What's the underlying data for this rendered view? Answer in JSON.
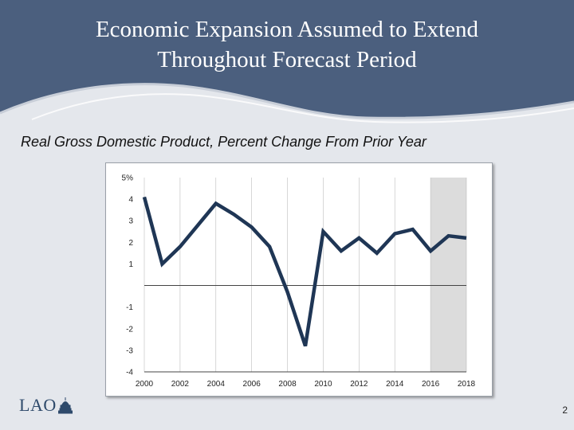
{
  "slide": {
    "title_line1": "Economic Expansion Assumed to Extend",
    "title_line2": "Throughout Forecast Period",
    "subtitle": "Real Gross Domestic Product, Percent Change From Prior Year",
    "page_number": "2",
    "logo_text": "LAO"
  },
  "colors": {
    "header": "#4b5f7e",
    "line": "#1f3655",
    "shade": "#dcdcdc"
  },
  "chart_data": {
    "type": "line",
    "title": "Real Gross Domestic Product, Percent Change From Prior Year",
    "xlabel": "",
    "ylabel": "",
    "x": [
      2000,
      2001,
      2002,
      2003,
      2004,
      2005,
      2006,
      2007,
      2008,
      2009,
      2010,
      2011,
      2012,
      2013,
      2014,
      2015,
      2016,
      2017,
      2018
    ],
    "values": [
      4.1,
      1.0,
      1.8,
      2.8,
      3.8,
      3.3,
      2.7,
      1.8,
      -0.3,
      -2.8,
      2.5,
      1.6,
      2.2,
      1.5,
      2.4,
      2.6,
      1.6,
      2.3,
      2.2
    ],
    "ylim": [
      -4,
      5
    ],
    "xlim": [
      2000,
      2018
    ],
    "y_ticks": [
      -4,
      -3,
      -2,
      -1,
      1,
      2,
      3,
      4,
      5
    ],
    "y_tick_labels": [
      "-4",
      "-3",
      "-2",
      "-1",
      "1",
      "2",
      "3",
      "4",
      "5%"
    ],
    "x_ticks": [
      2000,
      2002,
      2004,
      2006,
      2008,
      2010,
      2012,
      2014,
      2016,
      2018
    ],
    "x_tick_labels": [
      "2000",
      "2002",
      "2004",
      "2006",
      "2008",
      "2010",
      "2012",
      "2014",
      "2016",
      "2018"
    ],
    "forecast_shading": [
      2016,
      2018
    ],
    "grid": true
  }
}
